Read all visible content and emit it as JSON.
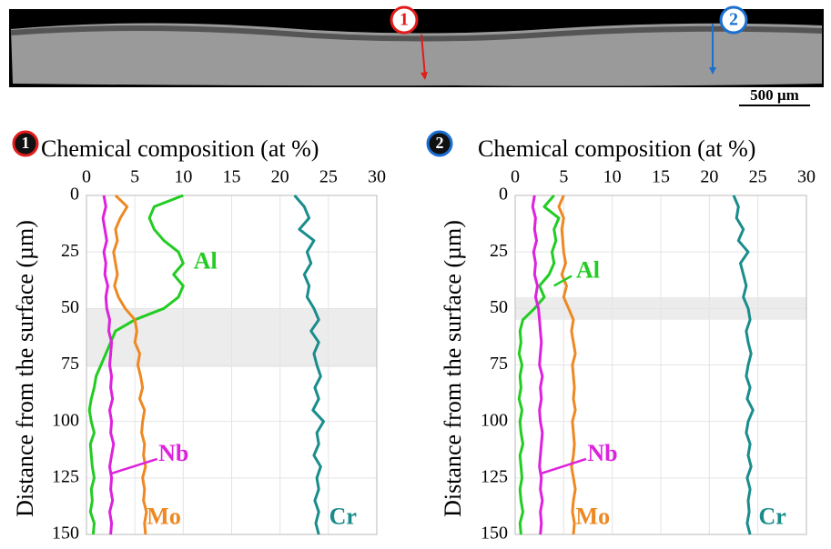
{
  "micrograph": {
    "markers": [
      "1",
      "2"
    ],
    "scale_bar": "500 µm"
  },
  "chart_data": [
    {
      "type": "line",
      "marker": "1",
      "title": "Chemical composition (at %)",
      "y_label": "Distance from the surface (µm)",
      "xlim": [
        0,
        30
      ],
      "xticks": [
        0,
        5,
        10,
        15,
        20,
        25,
        30
      ],
      "ylim": [
        0,
        150
      ],
      "yticks": [
        0,
        25,
        50,
        75,
        100,
        125,
        150
      ],
      "grid": true,
      "band": [
        50,
        76
      ],
      "y": [
        0,
        5,
        10,
        15,
        20,
        25,
        30,
        35,
        40,
        45,
        50,
        55,
        60,
        65,
        70,
        75,
        80,
        85,
        90,
        95,
        100,
        105,
        110,
        115,
        120,
        125,
        130,
        135,
        140,
        145,
        150
      ],
      "series": [
        {
          "name": "Al",
          "color": "#22cc22",
          "values": [
            10,
            7,
            6.5,
            7,
            8,
            9.5,
            10,
            9,
            10,
            9.5,
            8,
            5,
            3,
            2.5,
            2,
            1.5,
            1,
            0.8,
            0.5,
            0.3,
            0.5,
            0.8,
            0.4,
            0.5,
            0.6,
            0.8,
            0.5,
            0.6,
            0.4,
            0.8,
            0.7
          ]
        },
        {
          "name": "Nb",
          "color": "#dd22dd",
          "values": [
            1.8,
            2,
            1.7,
            1.9,
            2.1,
            1.8,
            2,
            1.9,
            2.2,
            2,
            2.1,
            2.4,
            2.3,
            2.6,
            2.5,
            2.4,
            2.6,
            2.5,
            2.7,
            2.4,
            2.6,
            2.5,
            2.8,
            2.6,
            2.4,
            2.6,
            2.5,
            2.7,
            2.4,
            2.6,
            2.5
          ]
        },
        {
          "name": "Mo",
          "color": "#ee8822",
          "values": [
            3,
            4.2,
            3.5,
            3,
            3.2,
            2.8,
            3,
            3.2,
            2.9,
            3.3,
            4,
            5,
            5.2,
            5,
            5.5,
            5.3,
            5.6,
            5.8,
            5.5,
            6,
            5.8,
            5.7,
            6,
            5.9,
            6.1,
            5.8,
            6,
            5.9,
            6.2,
            6,
            6.1
          ]
        },
        {
          "name": "Cr",
          "color": "#1a8c8c",
          "values": [
            21.5,
            22.5,
            23,
            22,
            23.5,
            22.8,
            23.2,
            22.5,
            23,
            22.8,
            23.5,
            24,
            23.2,
            24,
            23.5,
            23.8,
            24.2,
            23.6,
            24,
            23.4,
            24.5,
            23.8,
            24,
            23.5,
            24.2,
            23.8,
            24,
            23.6,
            24,
            23.7,
            24
          ]
        }
      ]
    },
    {
      "type": "line",
      "marker": "2",
      "title": "Chemical composition (at %)",
      "y_label": "Distance from the surface (µm)",
      "xlim": [
        0,
        30
      ],
      "xticks": [
        0,
        5,
        10,
        15,
        20,
        25,
        30
      ],
      "ylim": [
        0,
        150
      ],
      "yticks": [
        0,
        25,
        50,
        75,
        100,
        125,
        150
      ],
      "grid": true,
      "band": [
        45,
        55
      ],
      "y": [
        0,
        5,
        10,
        15,
        20,
        25,
        30,
        35,
        40,
        45,
        50,
        55,
        60,
        65,
        70,
        75,
        80,
        85,
        90,
        95,
        100,
        105,
        110,
        115,
        120,
        125,
        130,
        135,
        140,
        145,
        150
      ],
      "series": [
        {
          "name": "Al",
          "color": "#22cc22",
          "values": [
            4,
            3,
            4.5,
            4,
            4.2,
            3.8,
            4,
            3.5,
            2.5,
            3,
            2,
            0.8,
            0.5,
            0.6,
            0.4,
            0.7,
            0.5,
            0.6,
            0.4,
            0.7,
            0.5,
            0.6,
            0.8,
            0.5,
            0.6,
            0.7,
            0.5,
            0.6,
            0.8,
            0.5,
            0.6
          ]
        },
        {
          "name": "Nb",
          "color": "#dd22dd",
          "values": [
            2,
            1.8,
            2.1,
            2,
            2.2,
            1.9,
            2.1,
            2,
            2.3,
            2.1,
            2.4,
            2.5,
            2.6,
            2.7,
            2.6,
            2.5,
            2.8,
            2.6,
            2.7,
            2.5,
            2.6,
            2.8,
            2.7,
            2.6,
            2.5,
            2.7,
            2.6,
            2.8,
            2.6,
            2.7,
            2.6
          ]
        },
        {
          "name": "Mo",
          "color": "#ee8822",
          "values": [
            5,
            4.5,
            5,
            4.8,
            4.9,
            5,
            5.2,
            4.8,
            5.3,
            5,
            5.5,
            6,
            5.8,
            6,
            6.2,
            5.9,
            6,
            6.1,
            6,
            6.2,
            5.9,
            6,
            6.1,
            6,
            5.8,
            6,
            6.2,
            6,
            5.9,
            6.1,
            6
          ]
        },
        {
          "name": "Cr",
          "color": "#1a8c8c",
          "values": [
            22.5,
            23,
            22.8,
            23.5,
            23,
            24,
            23.2,
            23.5,
            23.8,
            23.5,
            24,
            24.2,
            23.8,
            24,
            24.3,
            24,
            23.8,
            24.2,
            23.9,
            24.5,
            24,
            23.8,
            24.2,
            24,
            24.3,
            23.9,
            24.2,
            24,
            24.1,
            23.9,
            24.2
          ]
        }
      ]
    }
  ]
}
